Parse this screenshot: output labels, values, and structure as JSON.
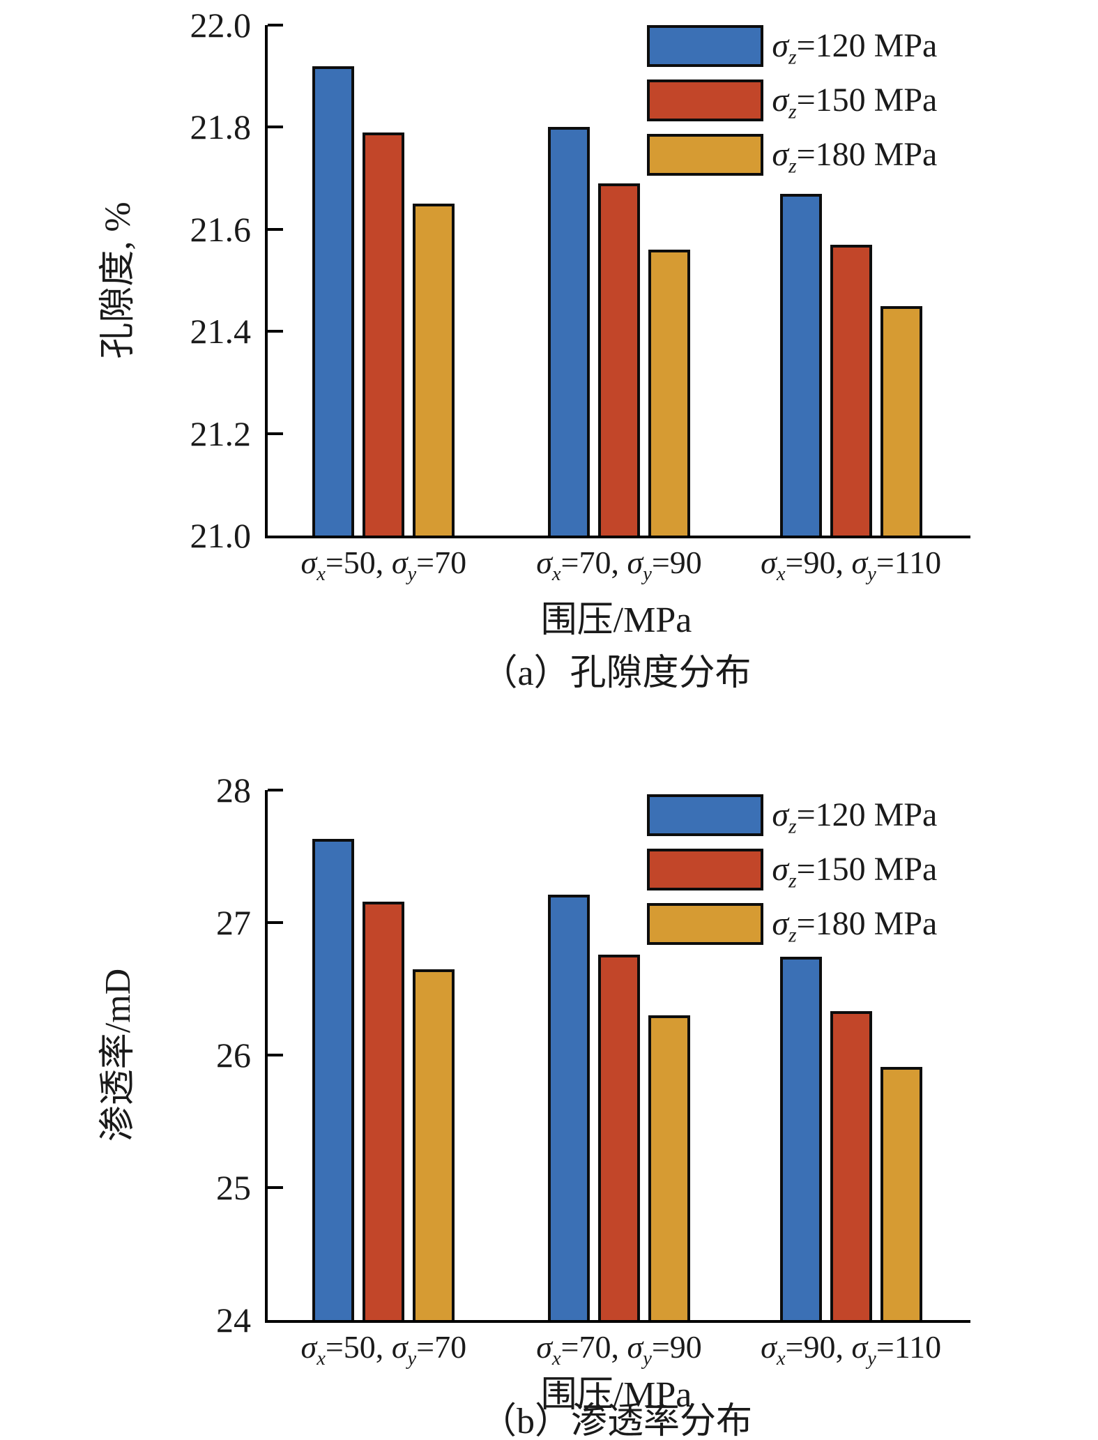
{
  "figure": {
    "kind": "two stacked grouped bar charts",
    "bar_outline_color": "#0d0d0d",
    "axis_color": "#000000"
  },
  "chart_data": [
    {
      "id": "a",
      "type": "bar",
      "caption": "（a）孔隙度分布",
      "xlabel": "围压/MPa",
      "ylabel": "孔隙度, %",
      "ylim": [
        21.0,
        22.0
      ],
      "yticks": [
        21.0,
        21.2,
        21.4,
        21.6,
        21.8,
        22.0
      ],
      "ytick_labels": [
        "21.0",
        "21.2",
        "21.4",
        "21.6",
        "21.8",
        "22.0"
      ],
      "grid": "off",
      "legend_position": "top-right-inside",
      "categories": [
        {
          "label_segments": [
            {
              "sigma": "σ",
              "sub": "x",
              "text": "=50, "
            },
            {
              "sigma": "σ",
              "sub": "y",
              "text": "=70"
            }
          ]
        },
        {
          "label_segments": [
            {
              "sigma": "σ",
              "sub": "x",
              "text": "=70, "
            },
            {
              "sigma": "σ",
              "sub": "y",
              "text": "=90"
            }
          ]
        },
        {
          "label_segments": [
            {
              "sigma": "σ",
              "sub": "x",
              "text": "=90, "
            },
            {
              "sigma": "σ",
              "sub": "y",
              "text": "=110"
            }
          ]
        }
      ],
      "series": [
        {
          "label_segments": [
            {
              "sigma": "σ",
              "sub": "z",
              "text": "=120 MPa"
            }
          ],
          "color": "#3B70B5",
          "values": [
            21.92,
            21.8,
            21.67
          ]
        },
        {
          "label_segments": [
            {
              "sigma": "σ",
              "sub": "z",
              "text": "=150 MPa"
            }
          ],
          "color": "#C24629",
          "values": [
            21.79,
            21.69,
            21.57
          ]
        },
        {
          "label_segments": [
            {
              "sigma": "σ",
              "sub": "z",
              "text": "=180 MPa"
            }
          ],
          "color": "#D69B33",
          "values": [
            21.65,
            21.56,
            21.45
          ]
        }
      ]
    },
    {
      "id": "b",
      "type": "bar",
      "caption": "（b）渗透率分布",
      "xlabel": "围压/MPa",
      "ylabel": "渗透率/mD",
      "ylim": [
        24,
        28
      ],
      "yticks": [
        24,
        25,
        26,
        27,
        28
      ],
      "ytick_labels": [
        "24",
        "25",
        "26",
        "27",
        "28"
      ],
      "grid": "off",
      "legend_position": "top-right-inside",
      "categories": [
        {
          "label_segments": [
            {
              "sigma": "σ",
              "sub": "x",
              "text": "=50, "
            },
            {
              "sigma": "σ",
              "sub": "y",
              "text": "=70"
            }
          ]
        },
        {
          "label_segments": [
            {
              "sigma": "σ",
              "sub": "x",
              "text": "=70, "
            },
            {
              "sigma": "σ",
              "sub": "y",
              "text": "=90"
            }
          ]
        },
        {
          "label_segments": [
            {
              "sigma": "σ",
              "sub": "x",
              "text": "=90, "
            },
            {
              "sigma": "σ",
              "sub": "y",
              "text": "=110"
            }
          ]
        }
      ],
      "series": [
        {
          "label_segments": [
            {
              "sigma": "σ",
              "sub": "z",
              "text": "=120 MPa"
            }
          ],
          "color": "#3B70B5",
          "values": [
            27.63,
            27.21,
            26.74
          ]
        },
        {
          "label_segments": [
            {
              "sigma": "σ",
              "sub": "z",
              "text": "=150 MPa"
            }
          ],
          "color": "#C24629",
          "values": [
            27.16,
            26.76,
            26.33
          ]
        },
        {
          "label_segments": [
            {
              "sigma": "σ",
              "sub": "z",
              "text": "=180 MPa"
            }
          ],
          "color": "#D69B33",
          "values": [
            26.65,
            26.3,
            25.91
          ]
        }
      ]
    }
  ]
}
